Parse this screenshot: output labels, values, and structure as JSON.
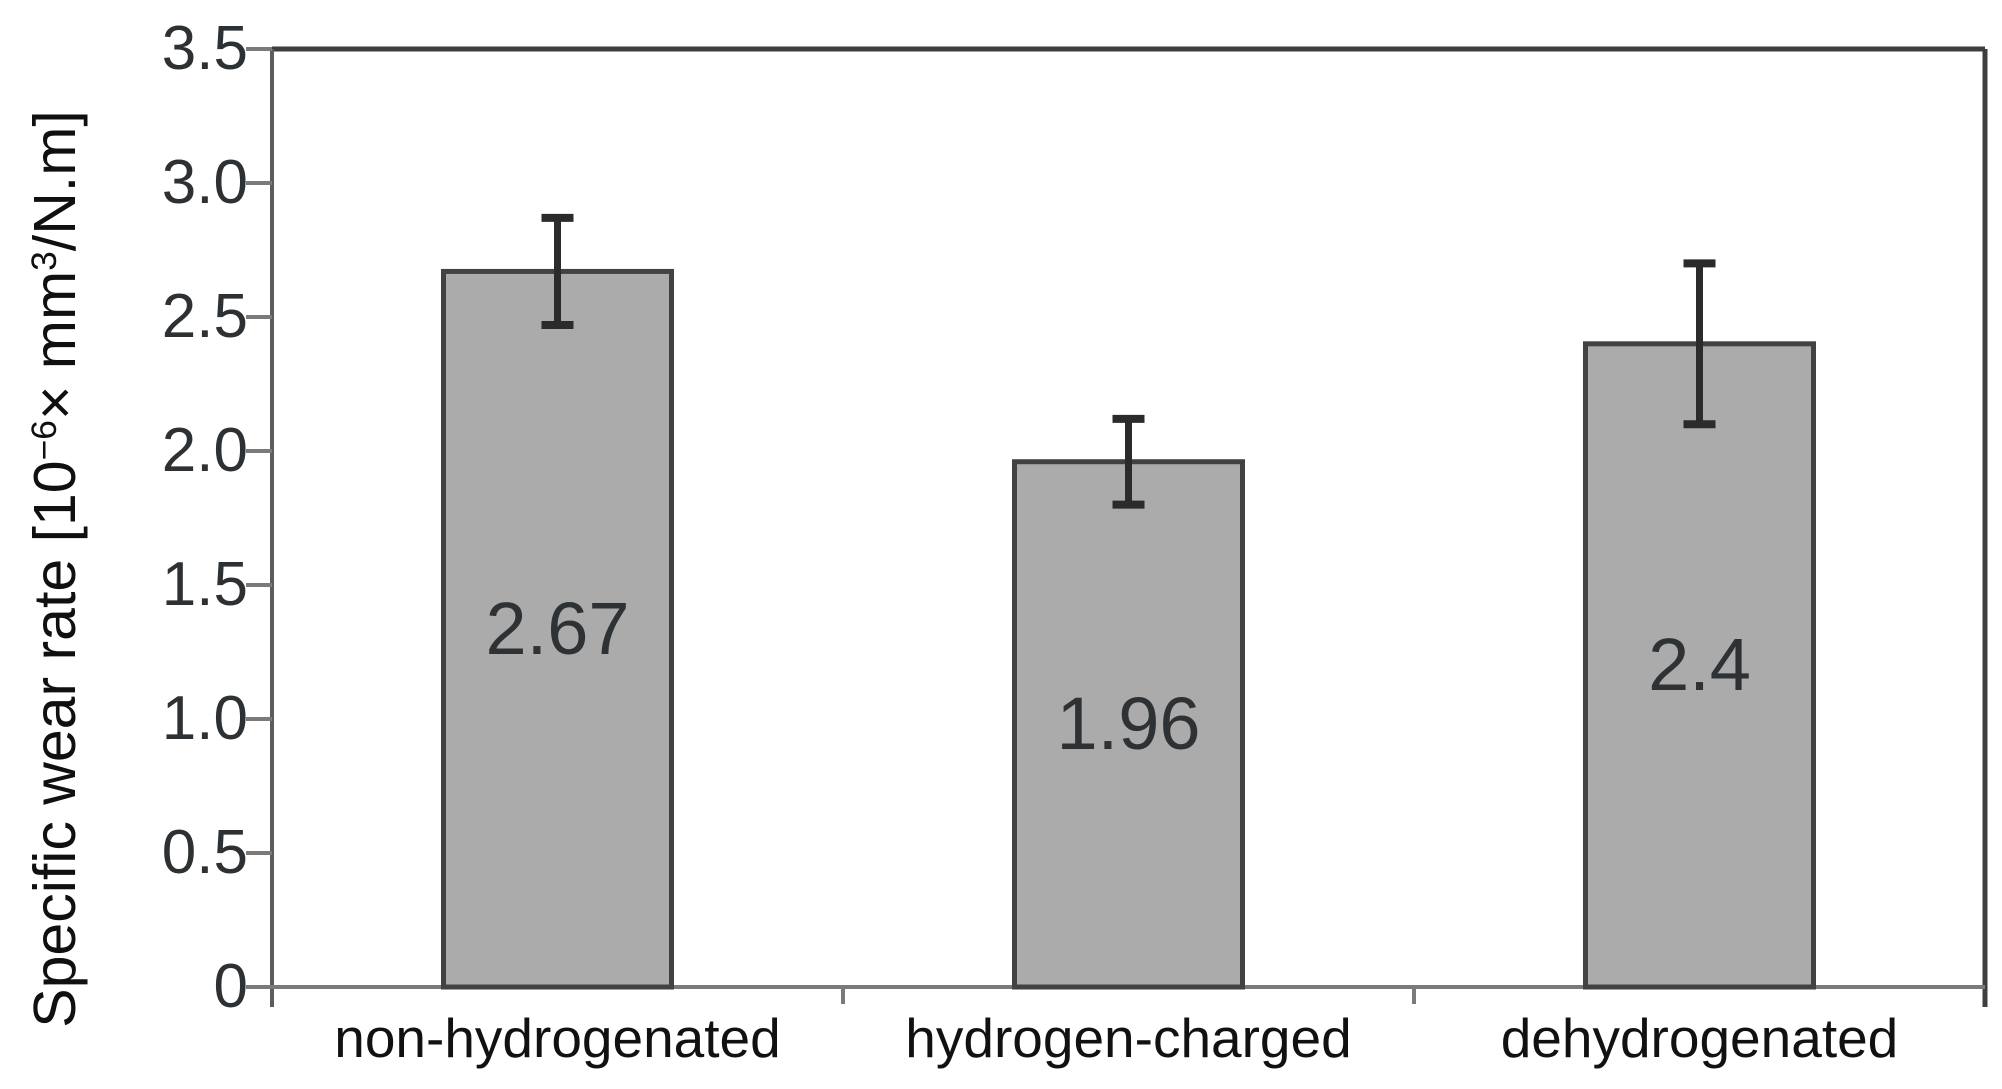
{
  "chart_data": {
    "type": "bar",
    "title": "",
    "categories": [
      "non-hydrogenated",
      "hydrogen-charged",
      "dehydrogenated"
    ],
    "values": [
      2.67,
      1.96,
      2.4
    ],
    "value_labels": [
      "2.67",
      "1.96",
      "2.4"
    ],
    "errors": [
      0.2,
      0.16,
      0.3
    ],
    "ylabel": "Specific wear rate [10⁻⁶× mm³/N.m]",
    "ylabel_parts": {
      "pre": "Specific wear rate [10",
      "sup1": "−6",
      "mid": "× mm",
      "sup2": "3",
      "post": "/N.m]"
    },
    "xlabel": "",
    "ylim": [
      0,
      3.5
    ],
    "yticks": [
      0,
      0.5,
      1,
      1.5,
      2,
      2.5,
      3,
      3.5
    ],
    "ytick_labels": [
      "0",
      "0.5",
      "1.0",
      "1.5",
      "2.0",
      "2.5",
      "3.0",
      "3.5"
    ],
    "grid": false,
    "legend": null,
    "colors": {
      "bar_fill": "#ababab",
      "bar_border": "#424242",
      "error_bar": "#2b2b2b",
      "frame_top_right": "#3e3e3e",
      "axis_left": "#5c5c5c",
      "axis_bottom": "#7a7a7a",
      "tick": "#7a7a7a",
      "tick_text": "#2d3133",
      "category_text": "#111111",
      "value_text": "#2e3234"
    }
  }
}
